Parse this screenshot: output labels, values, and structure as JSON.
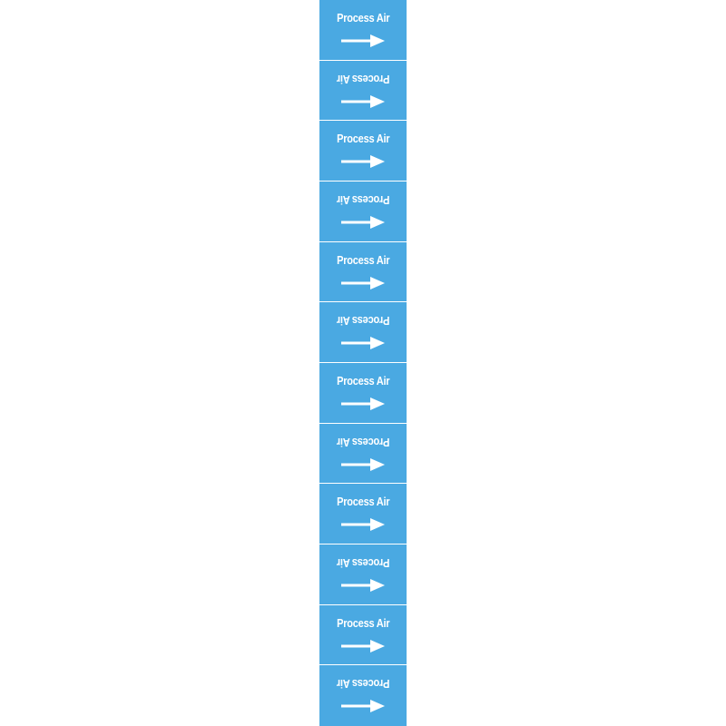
{
  "colors": {
    "label_background": "#4aa9e2",
    "text": "#ffffff",
    "arrow": "#ffffff"
  },
  "icons": {
    "arrow": "arrow-right-icon"
  },
  "labels": [
    {
      "text": "Process Air",
      "flipped": false
    },
    {
      "text": "Process Air",
      "flipped": true
    },
    {
      "text": "Process Air",
      "flipped": false
    },
    {
      "text": "Process Air",
      "flipped": true
    },
    {
      "text": "Process Air",
      "flipped": false
    },
    {
      "text": "Process Air",
      "flipped": true
    },
    {
      "text": "Process Air",
      "flipped": false
    },
    {
      "text": "Process Air",
      "flipped": true
    },
    {
      "text": "Process Air",
      "flipped": false
    },
    {
      "text": "Process Air",
      "flipped": true
    },
    {
      "text": "Process Air",
      "flipped": false
    },
    {
      "text": "Process Air",
      "flipped": true
    }
  ]
}
